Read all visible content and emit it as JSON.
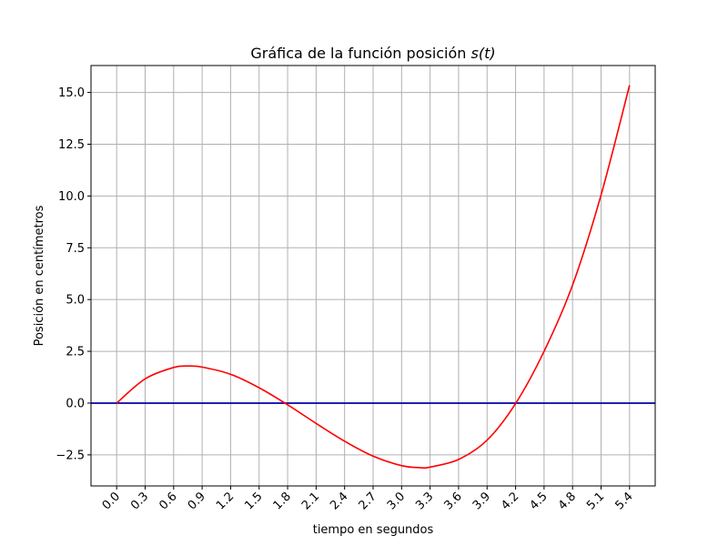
{
  "chart_data": {
    "type": "line",
    "title": "Gráfica de la función posición ",
    "title_math": "s(t)",
    "xlabel": "tiempo en segundos",
    "ylabel": "Posición en centímetros",
    "xlim": [
      -0.27,
      5.67
    ],
    "ylim": [
      -4.0,
      16.3
    ],
    "x_ticks": [
      0.0,
      0.3,
      0.6,
      0.9,
      1.2,
      1.5,
      1.8,
      2.1,
      2.4,
      2.7,
      3.0,
      3.3,
      3.6,
      3.9,
      4.2,
      4.5,
      4.8,
      5.1,
      5.4
    ],
    "x_tick_labels": [
      "0.0",
      "0.3",
      "0.6",
      "0.9",
      "1.2",
      "1.5",
      "1.8",
      "2.1",
      "2.4",
      "2.7",
      "3.0",
      "3.3",
      "3.6",
      "3.9",
      "4.2",
      "4.5",
      "4.8",
      "5.1",
      "5.4"
    ],
    "y_ticks": [
      -2.5,
      0.0,
      2.5,
      5.0,
      7.5,
      10.0,
      12.5,
      15.0
    ],
    "y_tick_labels": [
      "−2.5",
      "0.0",
      "2.5",
      "5.0",
      "7.5",
      "10.0",
      "12.5",
      "15.0"
    ],
    "grid": true,
    "series": [
      {
        "color": "#ff0000",
        "x": [
          0.0,
          0.3,
          0.6,
          0.75,
          0.9,
          1.2,
          1.5,
          1.8,
          2.1,
          2.4,
          2.7,
          3.0,
          3.2,
          3.3,
          3.6,
          3.9,
          4.2,
          4.5,
          4.8,
          5.1,
          5.4
        ],
        "y": [
          0.0,
          1.17,
          1.72,
          1.79,
          1.74,
          1.39,
          0.74,
          -0.08,
          -0.98,
          -1.84,
          -2.56,
          -3.02,
          -3.12,
          -3.09,
          -2.72,
          -1.79,
          -0.02,
          2.5,
          5.7,
          10.05,
          15.35
        ]
      }
    ],
    "hlines": [
      {
        "y": 0.0,
        "color": "#0000aa"
      }
    ]
  }
}
